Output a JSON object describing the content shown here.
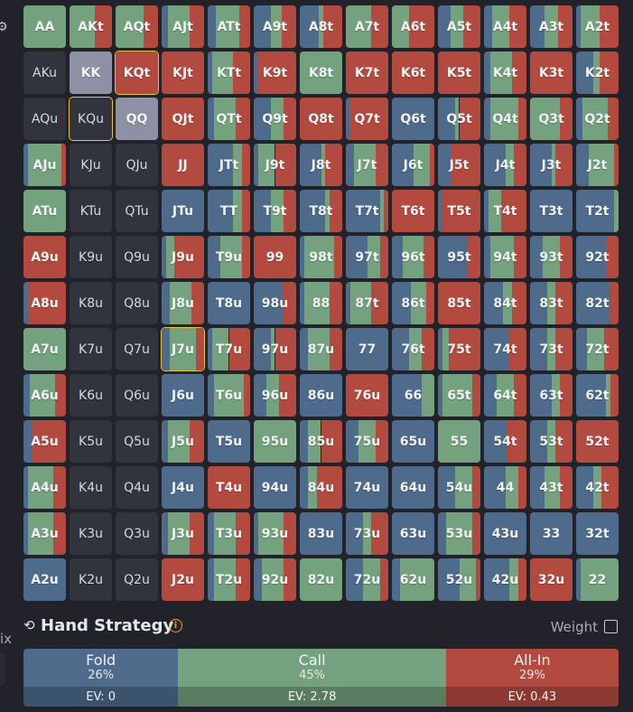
{
  "colors": {
    "fold": "#4e6b8c",
    "call": "#74a17e",
    "allin": "#b34a3f",
    "empty": "#32343d",
    "grey": "#8d91a3",
    "selected": "#e6c44a"
  },
  "grid": {
    "rows": [
      [
        [
          "AA",
          0,
          100,
          0
        ],
        [
          "AKt",
          0,
          60,
          40
        ],
        [
          "AQt",
          0,
          65,
          35
        ],
        [
          "AJt",
          15,
          50,
          35
        ],
        [
          "ATt",
          20,
          55,
          25
        ],
        [
          "A9t",
          40,
          25,
          35
        ],
        [
          "A8t",
          45,
          10,
          45
        ],
        [
          "A7t",
          0,
          60,
          40
        ],
        [
          "A6t",
          0,
          40,
          60
        ],
        [
          "A5t",
          30,
          30,
          40
        ],
        [
          "A4t",
          20,
          40,
          40
        ],
        [
          "A3t",
          35,
          30,
          35
        ],
        [
          "A2t",
          10,
          45,
          45
        ]
      ],
      [
        [
          "AKu",
          null,
          null,
          null
        ],
        [
          "KK",
          "grey"
        ],
        [
          "KQt",
          0,
          0,
          100,
          "sel"
        ],
        [
          "KJt",
          0,
          0,
          100
        ],
        [
          "KTt",
          10,
          50,
          40
        ],
        [
          "K9t",
          10,
          0,
          90
        ],
        [
          "K8t",
          0,
          100,
          0
        ],
        [
          "K7t",
          0,
          0,
          100
        ],
        [
          "K6t",
          0,
          0,
          100
        ],
        [
          "K5t",
          0,
          0,
          100
        ],
        [
          "K4t",
          15,
          50,
          35
        ],
        [
          "K3t",
          0,
          0,
          100
        ],
        [
          "K2t",
          40,
          15,
          45
        ]
      ],
      [
        [
          "AQu",
          null,
          null,
          null
        ],
        [
          "KQu",
          null,
          null,
          null,
          "sel"
        ],
        [
          "QQ",
          "grey"
        ],
        [
          "QJt",
          0,
          0,
          100
        ],
        [
          "QTt",
          15,
          50,
          35
        ],
        [
          "Q9t",
          40,
          30,
          30
        ],
        [
          "Q8t",
          0,
          0,
          100
        ],
        [
          "Q7t",
          10,
          0,
          90
        ],
        [
          "Q6t",
          100,
          0,
          0
        ],
        [
          "Q5t",
          40,
          10,
          50
        ],
        [
          "Q4t",
          15,
          65,
          20
        ],
        [
          "Q3t",
          0,
          70,
          30
        ],
        [
          "Q2t",
          15,
          60,
          25
        ]
      ],
      [
        [
          "AJu",
          10,
          80,
          10
        ],
        [
          "KJu",
          null,
          null,
          null
        ],
        [
          "QJu",
          null,
          null,
          null
        ],
        [
          "JJ",
          0,
          0,
          100
        ],
        [
          "JTt",
          60,
          20,
          20
        ],
        [
          "J9t",
          10,
          40,
          50
        ],
        [
          "J8t",
          50,
          10,
          40
        ],
        [
          "J7t",
          20,
          50,
          30
        ],
        [
          "J6t",
          50,
          40,
          10
        ],
        [
          "J5t",
          30,
          0,
          70
        ],
        [
          "J4t",
          50,
          20,
          30
        ],
        [
          "J3t",
          50,
          10,
          40
        ],
        [
          "J2t",
          30,
          60,
          10
        ]
      ],
      [
        [
          "ATu",
          0,
          100,
          0
        ],
        [
          "KTu",
          null,
          null,
          null
        ],
        [
          "QTu",
          null,
          null,
          null
        ],
        [
          "JTu",
          100,
          0,
          0
        ],
        [
          "TT",
          60,
          20,
          20
        ],
        [
          "T9t",
          40,
          30,
          30
        ],
        [
          "T8t",
          60,
          10,
          30
        ],
        [
          "T7t",
          80,
          10,
          10
        ],
        [
          "T6t",
          0,
          0,
          100
        ],
        [
          "T5t",
          10,
          0,
          90
        ],
        [
          "T4t",
          10,
          30,
          60
        ],
        [
          "T3t",
          100,
          0,
          0
        ],
        [
          "T2t",
          90,
          10,
          0
        ]
      ],
      [
        [
          "A9u",
          0,
          0,
          100
        ],
        [
          "K9u",
          null,
          null,
          null
        ],
        [
          "Q9u",
          null,
          null,
          null
        ],
        [
          "J9u",
          10,
          20,
          70
        ],
        [
          "T9u",
          30,
          50,
          20
        ],
        [
          "99",
          0,
          0,
          100
        ],
        [
          "98t",
          10,
          70,
          20
        ],
        [
          "97t",
          50,
          30,
          20
        ],
        [
          "96t",
          25,
          50,
          25
        ],
        [
          "95t",
          70,
          0,
          30
        ],
        [
          "94t",
          15,
          55,
          30
        ],
        [
          "93t",
          30,
          40,
          30
        ],
        [
          "92t",
          70,
          0,
          30
        ]
      ],
      [
        [
          "A8u",
          10,
          0,
          90
        ],
        [
          "K8u",
          null,
          null,
          null
        ],
        [
          "Q8u",
          null,
          null,
          null
        ],
        [
          "J8u",
          20,
          50,
          30
        ],
        [
          "T8u",
          100,
          0,
          0
        ],
        [
          "98u",
          70,
          0,
          30
        ],
        [
          "88",
          10,
          60,
          30
        ],
        [
          "87t",
          10,
          50,
          40
        ],
        [
          "86t",
          45,
          35,
          20
        ],
        [
          "85t",
          0,
          0,
          100
        ],
        [
          "84t",
          45,
          20,
          35
        ],
        [
          "83t",
          40,
          20,
          40
        ],
        [
          "82t",
          80,
          0,
          20
        ]
      ],
      [
        [
          "A7u",
          0,
          100,
          0
        ],
        [
          "K7u",
          null,
          null,
          null
        ],
        [
          "Q7u",
          null,
          null,
          null
        ],
        [
          "J7u",
          20,
          60,
          20,
          "sel"
        ],
        [
          "T7u",
          10,
          40,
          50
        ],
        [
          "97u",
          40,
          10,
          50
        ],
        [
          "87u",
          20,
          50,
          30
        ],
        [
          "77",
          100,
          0,
          0
        ],
        [
          "76t",
          40,
          30,
          30
        ],
        [
          "75t",
          10,
          15,
          75
        ],
        [
          "74t",
          60,
          0,
          40
        ],
        [
          "73t",
          40,
          20,
          40
        ],
        [
          "72t",
          25,
          40,
          35
        ]
      ],
      [
        [
          "A6u",
          15,
          60,
          25
        ],
        [
          "K6u",
          null,
          null,
          null
        ],
        [
          "Q6u",
          null,
          null,
          null
        ],
        [
          "J6u",
          100,
          0,
          0
        ],
        [
          "T6u",
          15,
          70,
          15
        ],
        [
          "96u",
          30,
          30,
          40
        ],
        [
          "86u",
          100,
          0,
          0
        ],
        [
          "76u",
          0,
          0,
          100
        ],
        [
          "66",
          70,
          30,
          0
        ],
        [
          "65t",
          10,
          70,
          20
        ],
        [
          "64t",
          30,
          40,
          30
        ],
        [
          "63t",
          50,
          20,
          30
        ],
        [
          "62t",
          70,
          10,
          20
        ]
      ],
      [
        [
          "A5u",
          20,
          0,
          80
        ],
        [
          "K5u",
          null,
          null,
          null
        ],
        [
          "Q5u",
          null,
          null,
          null
        ],
        [
          "J5u",
          15,
          50,
          35
        ],
        [
          "T5u",
          100,
          0,
          0
        ],
        [
          "95u",
          0,
          100,
          0
        ],
        [
          "85u",
          20,
          30,
          50
        ],
        [
          "75u",
          30,
          40,
          30
        ],
        [
          "65u",
          100,
          0,
          0
        ],
        [
          "55",
          0,
          100,
          0
        ],
        [
          "54t",
          55,
          0,
          45
        ],
        [
          "53t",
          40,
          20,
          40
        ],
        [
          "52t",
          0,
          0,
          100
        ]
      ],
      [
        [
          "A4u",
          10,
          60,
          30
        ],
        [
          "K4u",
          null,
          null,
          null
        ],
        [
          "Q4u",
          null,
          null,
          null
        ],
        [
          "J4u",
          100,
          0,
          0
        ],
        [
          "T4u",
          0,
          0,
          100
        ],
        [
          "94u",
          100,
          0,
          0
        ],
        [
          "84u",
          20,
          20,
          60
        ],
        [
          "74u",
          100,
          0,
          0
        ],
        [
          "64u",
          100,
          0,
          0
        ],
        [
          "54u",
          40,
          40,
          20
        ],
        [
          "44",
          50,
          30,
          20
        ],
        [
          "43t",
          35,
          35,
          30
        ],
        [
          "42t",
          40,
          20,
          40
        ]
      ],
      [
        [
          "A3u",
          10,
          60,
          30
        ],
        [
          "K3u",
          null,
          null,
          null
        ],
        [
          "Q3u",
          null,
          null,
          null
        ],
        [
          "J3u",
          15,
          50,
          35
        ],
        [
          "T3u",
          15,
          50,
          35
        ],
        [
          "93u",
          10,
          60,
          30
        ],
        [
          "83u",
          100,
          0,
          0
        ],
        [
          "73u",
          40,
          20,
          40
        ],
        [
          "63u",
          100,
          0,
          0
        ],
        [
          "53u",
          20,
          60,
          20
        ],
        [
          "43u",
          100,
          0,
          0
        ],
        [
          "33",
          100,
          0,
          0
        ],
        [
          "32t",
          100,
          0,
          0
        ]
      ],
      [
        [
          "A2u",
          100,
          0,
          0
        ],
        [
          "K2u",
          null,
          null,
          null
        ],
        [
          "Q2u",
          null,
          null,
          null
        ],
        [
          "J2u",
          0,
          0,
          100
        ],
        [
          "T2u",
          15,
          50,
          35
        ],
        [
          "92u",
          20,
          50,
          30
        ],
        [
          "82u",
          0,
          100,
          0
        ],
        [
          "72u",
          40,
          40,
          20
        ],
        [
          "62u",
          20,
          80,
          0
        ],
        [
          "52u",
          50,
          40,
          10
        ],
        [
          "42u",
          60,
          20,
          20
        ],
        [
          "32u",
          0,
          0,
          100
        ],
        [
          "22",
          10,
          90,
          0
        ]
      ]
    ]
  },
  "strategy": {
    "title": "Hand Strategy",
    "weight_label": "Weight",
    "actions": [
      {
        "key": "fold",
        "name": "Fold",
        "pct": "26%",
        "ev": "EV: 0",
        "share": 26
      },
      {
        "key": "call",
        "name": "Call",
        "pct": "45%",
        "ev": "EV: 2.78",
        "share": 45
      },
      {
        "key": "allin",
        "name": "All-In",
        "pct": "29%",
        "ev": "EV: 0.43",
        "share": 29
      }
    ]
  },
  "left_edge": {
    "partial_text": "ix"
  }
}
